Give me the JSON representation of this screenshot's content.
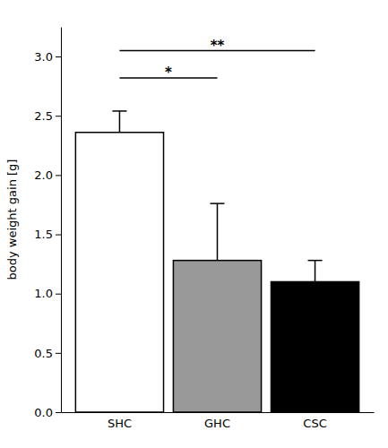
{
  "chart_data": {
    "type": "bar",
    "categories": [
      "SHC",
      "GHC",
      "CSC"
    ],
    "values": [
      2.36,
      1.28,
      1.1
    ],
    "errors": [
      0.18,
      0.48,
      0.18
    ],
    "colors": [
      "#ffffff",
      "#999999",
      "#000000"
    ],
    "y_label": "body weight gain [g]",
    "ylim": [
      0.0,
      3.25
    ],
    "yticks": [
      {
        "value": 0.0,
        "label": "0.0"
      },
      0.5,
      {
        "value": 1.0,
        "label": "1.0"
      },
      1.5,
      {
        "value": 2.0,
        "label": "2.0"
      },
      2.5,
      {
        "value": 3.0,
        "label": "3.0"
      }
    ],
    "grid": false,
    "annotations": [
      {
        "text": "*",
        "from": "SHC",
        "to": "GHC",
        "y": 2.82,
        "label_y": 2.84
      },
      {
        "text": "**",
        "from": "SHC",
        "to": "CSC",
        "y": 3.05,
        "label_y": 3.07
      }
    ]
  }
}
